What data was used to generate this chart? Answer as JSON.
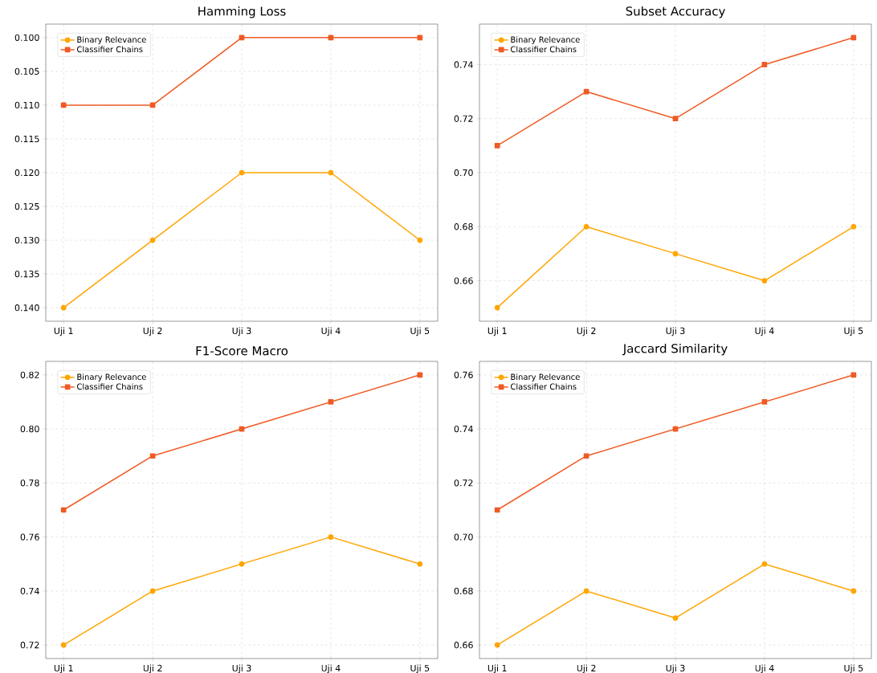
{
  "chart_data": [
    {
      "type": "line",
      "title": "Hamming Loss",
      "categories": [
        "Uji 1",
        "Uji 2",
        "Uji 3",
        "Uji 4",
        "Uji 5"
      ],
      "ylim": [
        0.142,
        0.098
      ],
      "yticks": [
        {
          "value": 0.1,
          "label": "0.100"
        },
        {
          "value": 0.105,
          "label": "0.105"
        },
        {
          "value": 0.11,
          "label": "0.110"
        },
        {
          "value": 0.115,
          "label": "0.115"
        },
        {
          "value": 0.12,
          "label": "0.120"
        },
        {
          "value": 0.125,
          "label": "0.125"
        },
        {
          "value": 0.13,
          "label": "0.130"
        },
        {
          "value": 0.135,
          "label": "0.135"
        },
        {
          "value": 0.14,
          "label": "0.140"
        }
      ],
      "grid": true,
      "legend": "top left",
      "series": [
        {
          "name": "Binary Relevance",
          "color": "#ffa500",
          "marker": "circle",
          "values": [
            0.14,
            0.13,
            0.12,
            0.12,
            0.13
          ]
        },
        {
          "name": "Classifier Chains",
          "color": "#f05a24",
          "marker": "square",
          "values": [
            0.11,
            0.11,
            0.1,
            0.1,
            0.1
          ]
        }
      ]
    },
    {
      "type": "line",
      "title": "Subset Accuracy",
      "categories": [
        "Uji 1",
        "Uji 2",
        "Uji 3",
        "Uji 4",
        "Uji 5"
      ],
      "ylim": [
        0.645,
        0.755
      ],
      "yticks": [
        {
          "value": 0.66,
          "label": "0.66"
        },
        {
          "value": 0.68,
          "label": "0.68"
        },
        {
          "value": 0.7,
          "label": "0.70"
        },
        {
          "value": 0.72,
          "label": "0.72"
        },
        {
          "value": 0.74,
          "label": "0.74"
        }
      ],
      "grid": true,
      "legend": "top left",
      "series": [
        {
          "name": "Binary Relevance",
          "color": "#ffa500",
          "marker": "circle",
          "values": [
            0.65,
            0.68,
            0.67,
            0.66,
            0.68
          ]
        },
        {
          "name": "Classifier Chains",
          "color": "#f05a24",
          "marker": "square",
          "values": [
            0.71,
            0.73,
            0.72,
            0.74,
            0.75
          ]
        }
      ]
    },
    {
      "type": "line",
      "title": "F1-Score Macro",
      "categories": [
        "Uji 1",
        "Uji 2",
        "Uji 3",
        "Uji 4",
        "Uji 5"
      ],
      "ylim": [
        0.715,
        0.825
      ],
      "yticks": [
        {
          "value": 0.72,
          "label": "0.72"
        },
        {
          "value": 0.74,
          "label": "0.74"
        },
        {
          "value": 0.76,
          "label": "0.76"
        },
        {
          "value": 0.78,
          "label": "0.78"
        },
        {
          "value": 0.8,
          "label": "0.80"
        },
        {
          "value": 0.82,
          "label": "0.82"
        }
      ],
      "grid": true,
      "legend": "top left",
      "series": [
        {
          "name": "Binary Relevance",
          "color": "#ffa500",
          "marker": "circle",
          "values": [
            0.72,
            0.74,
            0.75,
            0.76,
            0.75
          ]
        },
        {
          "name": "Classifier Chains",
          "color": "#f05a24",
          "marker": "square",
          "values": [
            0.77,
            0.79,
            0.8,
            0.81,
            0.82
          ]
        }
      ]
    },
    {
      "type": "line",
      "title": "Jaccard Similarity",
      "categories": [
        "Uji 1",
        "Uji 2",
        "Uji 3",
        "Uji 4",
        "Uji 5"
      ],
      "ylim": [
        0.655,
        0.765
      ],
      "yticks": [
        {
          "value": 0.66,
          "label": "0.66"
        },
        {
          "value": 0.68,
          "label": "0.68"
        },
        {
          "value": 0.7,
          "label": "0.70"
        },
        {
          "value": 0.72,
          "label": "0.72"
        },
        {
          "value": 0.74,
          "label": "0.74"
        },
        {
          "value": 0.76,
          "label": "0.76"
        }
      ],
      "grid": true,
      "legend": "top left",
      "series": [
        {
          "name": "Binary Relevance",
          "color": "#ffa500",
          "marker": "circle",
          "values": [
            0.66,
            0.68,
            0.67,
            0.69,
            0.68
          ]
        },
        {
          "name": "Classifier Chains",
          "color": "#f05a24",
          "marker": "square",
          "values": [
            0.71,
            0.73,
            0.74,
            0.75,
            0.76
          ]
        }
      ]
    }
  ]
}
